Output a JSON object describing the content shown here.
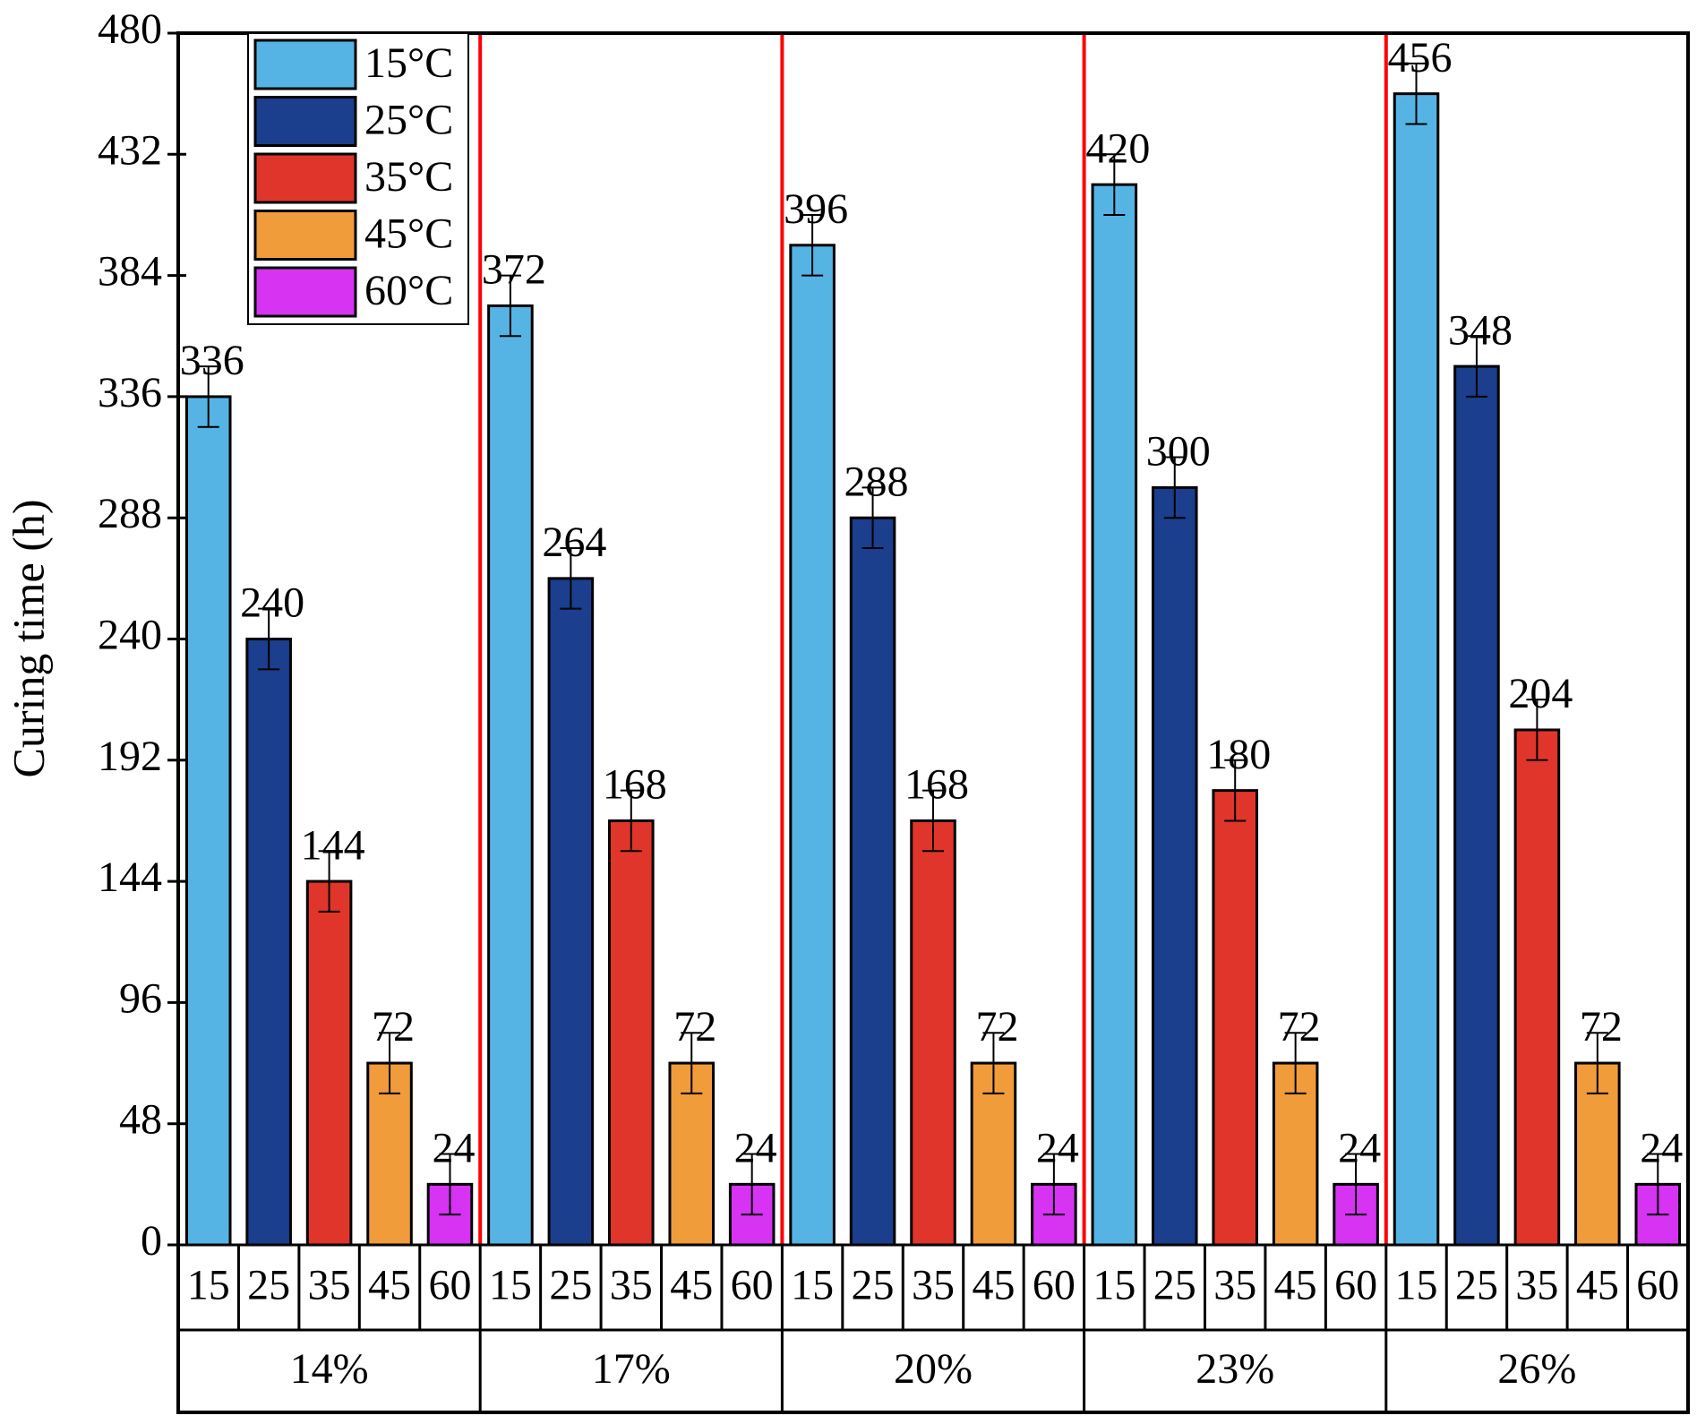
{
  "chart_data": {
    "type": "bar",
    "y_label": "Curing time (h)",
    "categories": [
      "14%",
      "17%",
      "20%",
      "23%",
      "26%"
    ],
    "subcategories": [
      "15",
      "25",
      "35",
      "45",
      "60"
    ],
    "series": [
      {
        "name": "15°C",
        "color": "#56b4e4",
        "values": [
          336,
          372,
          396,
          420,
          456
        ],
        "errors": [
          12,
          12,
          12,
          12,
          12
        ]
      },
      {
        "name": "25°C",
        "color": "#1b3e8d",
        "values": [
          240,
          264,
          288,
          300,
          348
        ],
        "errors": [
          12,
          12,
          12,
          12,
          12
        ]
      },
      {
        "name": "35°C",
        "color": "#e0352b",
        "values": [
          144,
          168,
          168,
          180,
          204
        ],
        "errors": [
          12,
          12,
          12,
          12,
          12
        ]
      },
      {
        "name": "45°C",
        "color": "#f09c3b",
        "values": [
          72,
          72,
          72,
          72,
          72
        ],
        "errors": [
          12,
          12,
          12,
          12,
          12
        ]
      },
      {
        "name": "60°C",
        "color": "#d633f2",
        "values": [
          24,
          24,
          24,
          24,
          24
        ],
        "errors": [
          12,
          12,
          12,
          12,
          12
        ]
      }
    ],
    "ylim": [
      0,
      480
    ],
    "yticks": [
      0,
      48,
      96,
      144,
      192,
      240,
      288,
      336,
      384,
      432,
      480
    ],
    "legend": "upper left",
    "separator_color": "#ff0000"
  }
}
